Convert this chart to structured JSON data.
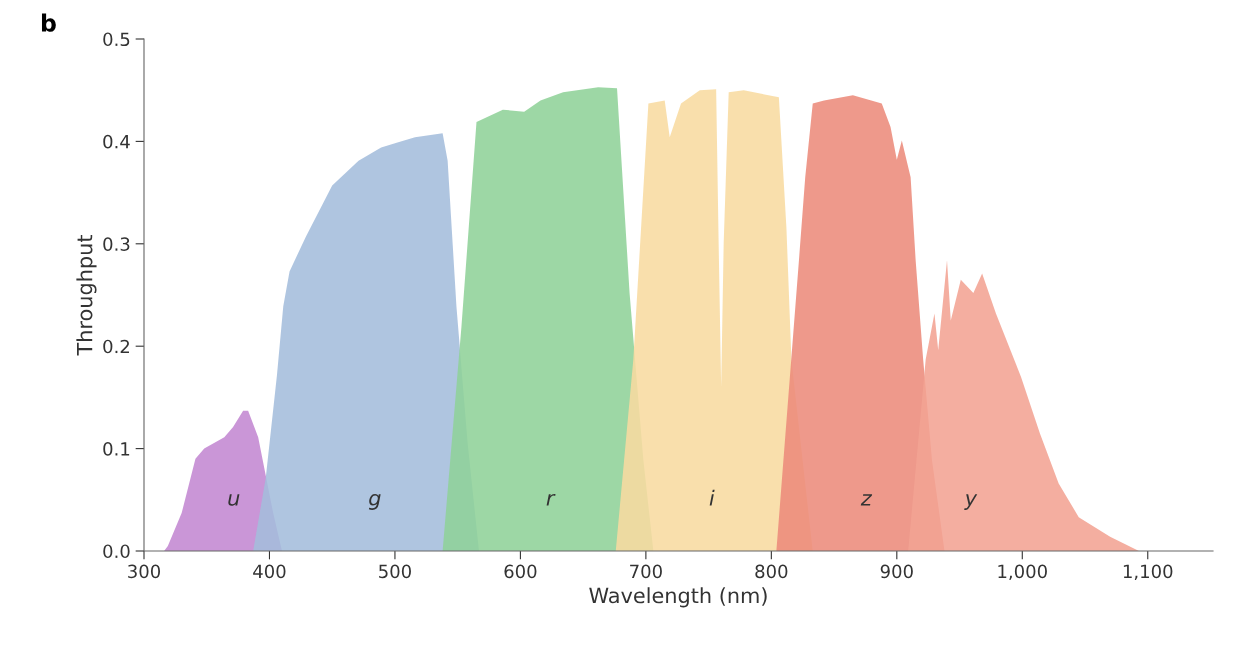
{
  "chart_data": {
    "type": "area",
    "xlabel": "Wavelength (nm)",
    "ylabel": "Throughput",
    "xlim": [
      300,
      1152
    ],
    "ylim": [
      0,
      0.5
    ],
    "xticks": [
      300,
      400,
      500,
      600,
      700,
      800,
      900,
      {
        "value": 1000,
        "label": "1,000"
      },
      {
        "value": 1100,
        "label": "1,100"
      }
    ],
    "yticks": [
      {
        "value": 0,
        "label": "0.0"
      },
      0.1,
      0.2,
      0.3,
      0.4,
      0.5
    ],
    "grid": false,
    "legend": false,
    "annotations": [
      "b"
    ],
    "series": [
      {
        "name": "u",
        "color": "#c387d1",
        "x": [
          316,
          319,
          330,
          341,
          348,
          364,
          371,
          379,
          383,
          391,
          397,
          403,
          410
        ],
        "values": [
          0,
          0.005,
          0.037,
          0.09,
          0.1,
          0.111,
          0.121,
          0.137,
          0.137,
          0.111,
          0.074,
          0.037,
          0
        ]
      },
      {
        "name": "g",
        "color": "#a4bddc",
        "x": [
          387,
          397,
          406,
          411,
          416,
          429,
          450,
          471,
          489,
          502,
          516,
          538,
          542,
          549,
          558,
          567
        ],
        "values": [
          0,
          0.071,
          0.172,
          0.239,
          0.273,
          0.307,
          0.357,
          0.381,
          0.394,
          0.399,
          0.404,
          0.408,
          0.381,
          0.239,
          0.105,
          0
        ]
      },
      {
        "name": "r",
        "color": "#90d199",
        "x": [
          538,
          553,
          565,
          586,
          603,
          616,
          634,
          662,
          677,
          687,
          698,
          706
        ],
        "values": [
          0,
          0.219,
          0.419,
          0.431,
          0.429,
          0.44,
          0.448,
          0.453,
          0.452,
          0.252,
          0.089,
          0
        ]
      },
      {
        "name": "i",
        "color": "#f8dba0",
        "x": [
          676,
          690,
          702,
          715,
          719,
          728,
          743,
          756,
          758,
          760,
          762,
          766,
          778,
          806,
          812,
          816,
          833
        ],
        "values": [
          0,
          0.187,
          0.437,
          0.44,
          0.404,
          0.437,
          0.45,
          0.451,
          0.3,
          0.16,
          0.3,
          0.448,
          0.45,
          0.443,
          0.316,
          0.187,
          0
        ]
      },
      {
        "name": "z",
        "color": "#ec8b7b",
        "x": [
          804,
          822,
          827,
          833,
          842,
          865,
          888,
          895,
          900,
          904,
          911,
          915,
          921,
          928,
          938
        ],
        "values": [
          0,
          0.284,
          0.365,
          0.437,
          0.44,
          0.445,
          0.437,
          0.414,
          0.382,
          0.401,
          0.365,
          0.284,
          0.187,
          0.089,
          0
        ]
      },
      {
        "name": "y",
        "color": "#f2a393",
        "x": [
          909,
          923,
          930,
          933,
          940,
          943,
          951,
          961,
          968,
          979,
          999,
          1014,
          1029,
          1045,
          1070,
          1093
        ],
        "values": [
          0,
          0.187,
          0.232,
          0.196,
          0.284,
          0.225,
          0.265,
          0.252,
          0.271,
          0.232,
          0.17,
          0.115,
          0.066,
          0.033,
          0.014,
          0
        ]
      }
    ]
  }
}
